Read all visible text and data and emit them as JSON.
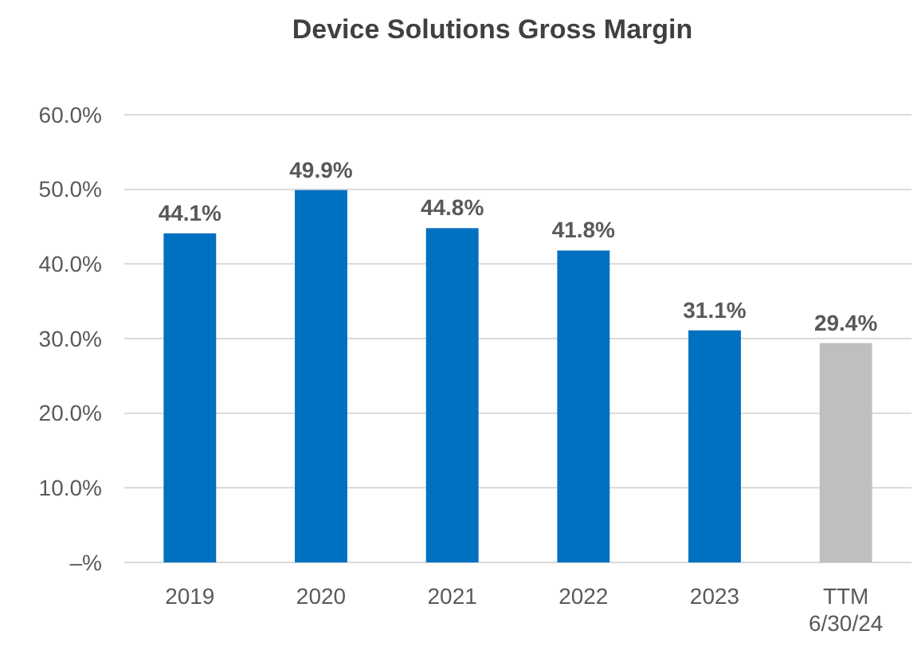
{
  "chart_data": {
    "type": "bar",
    "title": "Device Solutions Gross Margin",
    "categories": [
      "2019",
      "2020",
      "2021",
      "2022",
      "2023",
      "TTM\n6/30/24"
    ],
    "values": [
      44.1,
      49.9,
      44.8,
      41.8,
      31.1,
      29.4
    ],
    "colors": [
      "#0070c0",
      "#0070c0",
      "#0070c0",
      "#0070c0",
      "#0070c0",
      "#bfbfbf"
    ],
    "value_labels": [
      "44.1%",
      "49.9%",
      "44.8%",
      "41.8%",
      "31.1%",
      "29.4%"
    ],
    "ylim": [
      0,
      60
    ],
    "yticks": [
      {
        "value": 0,
        "label": "–%"
      },
      {
        "value": 10,
        "label": "10.0%"
      },
      {
        "value": 20,
        "label": "20.0%"
      },
      {
        "value": 30,
        "label": "30.0%"
      },
      {
        "value": 40,
        "label": "40.0%"
      },
      {
        "value": 50,
        "label": "50.0%"
      },
      {
        "value": 60,
        "label": "60.0%"
      }
    ],
    "grid": "y"
  }
}
